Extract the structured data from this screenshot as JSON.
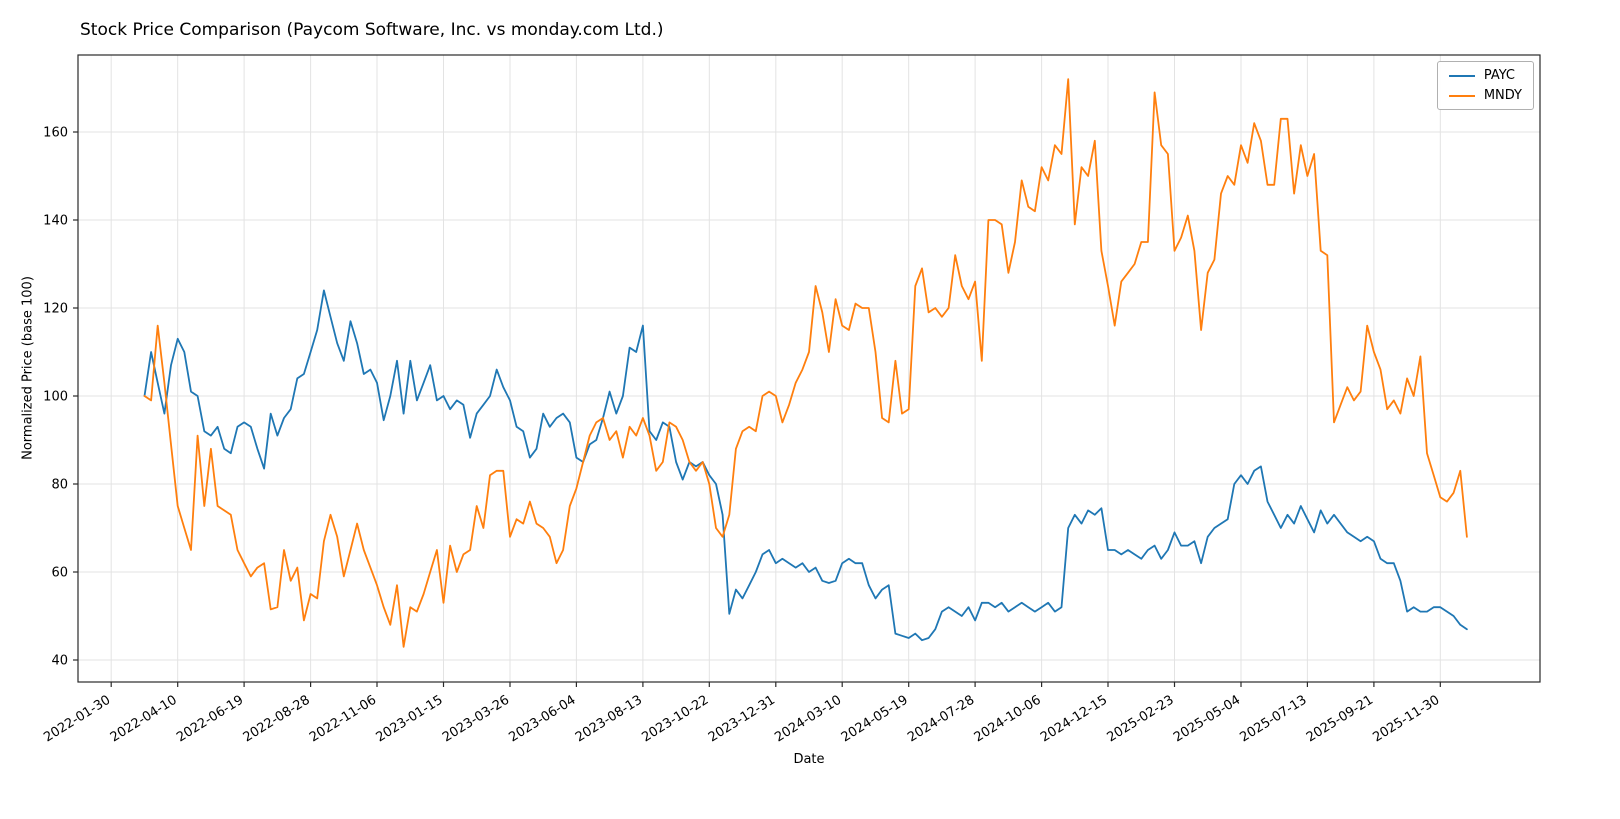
{
  "chart_data": {
    "type": "line",
    "title": "Stock Price Comparison (Paycom Software, Inc. vs monday.com Ltd.)",
    "xlabel": "Date",
    "ylabel": "Normalized Price (base 100)",
    "grid": true,
    "legend_position": "upper right",
    "x_start_date": "2022-03-06",
    "x_interval": "weekly",
    "xlim_weeks": [
      -10,
      210
    ],
    "ylim": [
      35,
      177.5
    ],
    "y_ticks": [
      40,
      60,
      80,
      100,
      120,
      140,
      160
    ],
    "x_tick_indices": [
      -5,
      5,
      15,
      25,
      35,
      45,
      55,
      65,
      75,
      85,
      95,
      105,
      115,
      125,
      135,
      145,
      155,
      165,
      175,
      185,
      195
    ],
    "x_tick_labels": [
      "2022-01-30",
      "2022-04-10",
      "2022-06-19",
      "2022-08-28",
      "2022-11-06",
      "2023-01-15",
      "2023-03-26",
      "2023-06-04",
      "2023-08-13",
      "2023-10-22",
      "2023-12-31",
      "2024-03-10",
      "2024-05-19",
      "2024-07-28",
      "2024-10-06",
      "2024-12-15",
      "2025-02-23",
      "2025-05-04",
      "2025-07-13",
      "2025-09-21",
      "2025-11-30"
    ],
    "grid_color": "#e3e3e3",
    "frame_color": "#2a2a2a",
    "series": [
      {
        "name": "PAYC",
        "color": "#1f77b4",
        "values": [
          100,
          110,
          103,
          96,
          107,
          113,
          110,
          101,
          100,
          92,
          91,
          93,
          88,
          87,
          93,
          94,
          93,
          88,
          83.5,
          96,
          91,
          95,
          97,
          104,
          105,
          110,
          115,
          124,
          118,
          112,
          108,
          117,
          112,
          105,
          106,
          103,
          94.5,
          100,
          108,
          96,
          108,
          99,
          103,
          107,
          99,
          100,
          97,
          99,
          98,
          90.5,
          96,
          98,
          100,
          106,
          102,
          99,
          93,
          92,
          86,
          88,
          96,
          93,
          95,
          96,
          94,
          86,
          85,
          89,
          90,
          95,
          101,
          96,
          100,
          111,
          110,
          116,
          92,
          90,
          94,
          93,
          85,
          81,
          85,
          84,
          85,
          82,
          80,
          73,
          50.5,
          56,
          54,
          57,
          60,
          64,
          65,
          62,
          63,
          62,
          61,
          62,
          60,
          61,
          58,
          57.5,
          58,
          62,
          63,
          62,
          62,
          57,
          54,
          56,
          57,
          46,
          45.5,
          45,
          46,
          44.5,
          45,
          47,
          51,
          52,
          51,
          50,
          52,
          49,
          53,
          53,
          52,
          53,
          51,
          52,
          53,
          52,
          51,
          52,
          53,
          51,
          52,
          70,
          73,
          71,
          74,
          73,
          74.5,
          65,
          65,
          64,
          65,
          64,
          63,
          65,
          66,
          63,
          65,
          69,
          66,
          66,
          67,
          62,
          68,
          70,
          71,
          72,
          80,
          82,
          80,
          83,
          84,
          76,
          73,
          70,
          73,
          71,
          75,
          72,
          69,
          74,
          71,
          73,
          71,
          69,
          68,
          67,
          68,
          67,
          63,
          62,
          62,
          58,
          51,
          52,
          51,
          51,
          52,
          52,
          51,
          50,
          48,
          47
        ]
      },
      {
        "name": "MNDY",
        "color": "#ff7f0e",
        "values": [
          100,
          99,
          116,
          103,
          89,
          75,
          70,
          65,
          91,
          75,
          88,
          75,
          74,
          73,
          65,
          62,
          59,
          61,
          62,
          51.5,
          52,
          65,
          58,
          61,
          49,
          55,
          54,
          67,
          73,
          68,
          59,
          65,
          71,
          65,
          61,
          57,
          52,
          48,
          57,
          43,
          52,
          51,
          55,
          60,
          65,
          53,
          66,
          60,
          64,
          65,
          75,
          70,
          82,
          83,
          83,
          68,
          72,
          71,
          76,
          71,
          70,
          68,
          62,
          65,
          75,
          79,
          85,
          91,
          94,
          95,
          90,
          92,
          86,
          93,
          91,
          95,
          91,
          83,
          85,
          94,
          93,
          90,
          85,
          83,
          85,
          80,
          70,
          68,
          73,
          88,
          92,
          93,
          92,
          100,
          101,
          100,
          94,
          98,
          103,
          106,
          110,
          125,
          119,
          110,
          122,
          116,
          115,
          121,
          120,
          120,
          110,
          95,
          94,
          108,
          96,
          97,
          125,
          129,
          119,
          120,
          118,
          120,
          132,
          125,
          122,
          126,
          108,
          140,
          140,
          139,
          128,
          135,
          149,
          143,
          142,
          152,
          149,
          157,
          155,
          172,
          139,
          152,
          150,
          158,
          133,
          125,
          116,
          126,
          128,
          130,
          135,
          135,
          169,
          157,
          155,
          133,
          136,
          141,
          133,
          115,
          128,
          131,
          146,
          150,
          148,
          157,
          153,
          162,
          158,
          148,
          148,
          163,
          163,
          146,
          157,
          150,
          155,
          133,
          132,
          94,
          98,
          102,
          99,
          101,
          116,
          110,
          106,
          97,
          99,
          96,
          104,
          100,
          109,
          87,
          82,
          77,
          76,
          78,
          83,
          68
        ]
      }
    ]
  }
}
